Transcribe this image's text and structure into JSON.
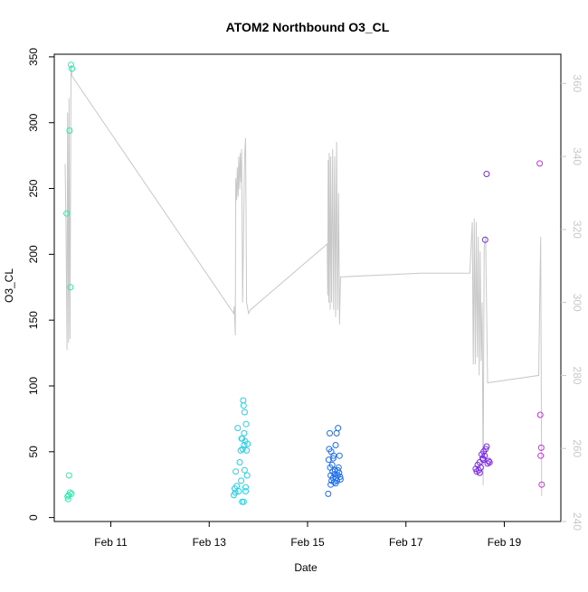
{
  "chart_data": {
    "type": "scatter",
    "title": "ATOM2 Northbound O3_CL",
    "xlabel": "Date",
    "ylabel": "O3_CL",
    "y2label": "",
    "x_unit": "days in February",
    "xlim": [
      9.85,
      20.15
    ],
    "ylim": [
      -3,
      352
    ],
    "y2lim": [
      240,
      368
    ],
    "x_ticks": [
      11,
      13,
      15,
      17,
      19
    ],
    "x_tick_labels": [
      "Feb 11",
      "Feb 13",
      "Feb 15",
      "Feb 17",
      "Feb 19"
    ],
    "y_ticks": [
      0,
      50,
      100,
      150,
      200,
      250,
      300,
      350
    ],
    "y_tick_labels": [
      "0",
      "50",
      "100",
      "150",
      "200",
      "250",
      "300",
      "350"
    ],
    "y2_ticks": [
      240,
      260,
      280,
      300,
      320,
      340,
      360
    ],
    "y2_tick_labels": [
      "240",
      "260",
      "280",
      "300",
      "320",
      "340",
      "360"
    ],
    "grid": false,
    "legend": "none",
    "colors": {
      "line": "#c8c8c8",
      "axis": "#000000",
      "axis2": "#c8c8c8"
    },
    "point_colors": {
      "c1": "#2ee8b0",
      "c2": "#26d0e6",
      "c3": "#1c6ef0",
      "c4": "#2a2ae8",
      "c5": "#7a28e6",
      "c6": "#cc2ee8"
    },
    "series": [
      {
        "role": "points",
        "axis": "left",
        "marker": "open-circle",
        "points": [
          [
            10.1,
            231,
            "c1"
          ],
          [
            10.13,
            14,
            "c1"
          ],
          [
            10.15,
            32,
            "c1"
          ],
          [
            10.16,
            294,
            "c1"
          ],
          [
            10.17,
            19,
            "c1"
          ],
          [
            10.18,
            175,
            "c1"
          ],
          [
            10.19,
            344,
            "c1"
          ],
          [
            10.2,
            18,
            "c1"
          ],
          [
            10.21,
            341,
            "c1"
          ],
          [
            10.12,
            16,
            "c1"
          ],
          [
            10.14,
            17,
            "c1"
          ],
          [
            13.5,
            17,
            "c2"
          ],
          [
            13.52,
            22,
            "c2"
          ],
          [
            13.54,
            35,
            "c2"
          ],
          [
            13.56,
            24,
            "c2"
          ],
          [
            13.58,
            68,
            "c2"
          ],
          [
            13.6,
            20,
            "c2"
          ],
          [
            13.62,
            42,
            "c2"
          ],
          [
            13.64,
            51,
            "c2"
          ],
          [
            13.65,
            28,
            "c2"
          ],
          [
            13.66,
            60,
            "c2"
          ],
          [
            13.67,
            12,
            "c2"
          ],
          [
            13.68,
            52,
            "c2"
          ],
          [
            13.69,
            89,
            "c2"
          ],
          [
            13.7,
            85,
            "c2"
          ],
          [
            13.71,
            64,
            "c2"
          ],
          [
            13.72,
            80,
            "c2"
          ],
          [
            13.73,
            58,
            "c2"
          ],
          [
            13.74,
            20,
            "c2"
          ],
          [
            13.75,
            71,
            "c2"
          ],
          [
            13.76,
            51,
            "c2"
          ],
          [
            13.77,
            32,
            "c2"
          ],
          [
            13.78,
            56,
            "c2"
          ],
          [
            13.7,
            12,
            "c2"
          ],
          [
            13.72,
            36,
            "c2"
          ],
          [
            13.74,
            23,
            "c2"
          ],
          [
            13.67,
            60,
            "c2"
          ],
          [
            13.71,
            55,
            "c2"
          ],
          [
            13.53,
            19,
            "c2"
          ],
          [
            15.42,
            18,
            "c3"
          ],
          [
            15.43,
            44,
            "c3"
          ],
          [
            15.44,
            52,
            "c3"
          ],
          [
            15.45,
            64,
            "c3"
          ],
          [
            15.46,
            38,
            "c3"
          ],
          [
            15.47,
            32,
            "c3"
          ],
          [
            15.48,
            50,
            "c3"
          ],
          [
            15.49,
            28,
            "c3"
          ],
          [
            15.5,
            40,
            "c3"
          ],
          [
            15.51,
            35,
            "c3"
          ],
          [
            15.52,
            30,
            "c3"
          ],
          [
            15.53,
            47,
            "c3"
          ],
          [
            15.54,
            27,
            "c3"
          ],
          [
            15.55,
            33,
            "c3"
          ],
          [
            15.56,
            36,
            "c3"
          ],
          [
            15.57,
            55,
            "c3"
          ],
          [
            15.58,
            30,
            "c3"
          ],
          [
            15.59,
            64,
            "c3"
          ],
          [
            15.6,
            28,
            "c3"
          ],
          [
            15.61,
            32,
            "c3"
          ],
          [
            15.62,
            68,
            "c3"
          ],
          [
            15.63,
            38,
            "c3"
          ],
          [
            15.64,
            34,
            "c3"
          ],
          [
            15.65,
            47,
            "c3"
          ],
          [
            15.66,
            31,
            "c3"
          ],
          [
            15.67,
            29,
            "c3"
          ],
          [
            15.47,
            25,
            "c3"
          ],
          [
            15.52,
            45,
            "c3"
          ],
          [
            15.57,
            26,
            "c3"
          ],
          [
            15.61,
            36,
            "c3"
          ],
          [
            18.42,
            37,
            "c5"
          ],
          [
            18.44,
            35,
            "c5"
          ],
          [
            18.46,
            40,
            "c5"
          ],
          [
            18.48,
            36,
            "c5"
          ],
          [
            18.5,
            42,
            "c5"
          ],
          [
            18.52,
            38,
            "c5"
          ],
          [
            18.54,
            48,
            "c5"
          ],
          [
            18.56,
            45,
            "c5"
          ],
          [
            18.58,
            50,
            "c5"
          ],
          [
            18.6,
            47,
            "c5"
          ],
          [
            18.62,
            52,
            "c5"
          ],
          [
            18.64,
            54,
            "c5"
          ],
          [
            18.66,
            41,
            "c5"
          ],
          [
            18.68,
            43,
            "c5"
          ],
          [
            18.7,
            42,
            "c5"
          ],
          [
            18.5,
            34,
            "c5"
          ],
          [
            18.57,
            44,
            "c5"
          ],
          [
            18.61,
            211,
            "c5"
          ],
          [
            18.64,
            261,
            "c5"
          ],
          [
            19.72,
            269,
            "c6"
          ],
          [
            19.73,
            78,
            "c6"
          ],
          [
            19.74,
            47,
            "c6"
          ],
          [
            19.75,
            53,
            "c6"
          ],
          [
            19.76,
            25,
            "c6"
          ]
        ]
      },
      {
        "role": "line",
        "axis": "right",
        "points": [
          [
            10.07,
            338
          ],
          [
            10.09,
            320
          ],
          [
            10.11,
            287
          ],
          [
            10.12,
            352
          ],
          [
            10.14,
            289
          ],
          [
            10.15,
            356
          ],
          [
            10.17,
            290
          ],
          [
            10.19,
            365
          ],
          [
            10.21,
            362
          ],
          [
            13.5,
            297
          ],
          [
            13.51,
            299
          ],
          [
            13.53,
            291
          ],
          [
            13.54,
            334
          ],
          [
            13.56,
            328
          ],
          [
            13.57,
            337
          ],
          [
            13.59,
            329
          ],
          [
            13.6,
            340
          ],
          [
            13.62,
            331
          ],
          [
            13.63,
            341
          ],
          [
            13.65,
            333
          ],
          [
            13.66,
            342
          ],
          [
            13.68,
            300
          ],
          [
            13.72,
            340
          ],
          [
            13.74,
            345
          ],
          [
            13.76,
            300
          ],
          [
            13.8,
            297
          ],
          [
            13.84,
            298
          ],
          [
            15.4,
            316
          ],
          [
            15.41,
            302
          ],
          [
            15.42,
            339
          ],
          [
            15.43,
            300
          ],
          [
            15.44,
            341
          ],
          [
            15.46,
            298
          ],
          [
            15.47,
            340
          ],
          [
            15.49,
            300
          ],
          [
            15.51,
            342
          ],
          [
            15.53,
            298
          ],
          [
            15.55,
            340
          ],
          [
            15.57,
            296
          ],
          [
            15.59,
            344
          ],
          [
            15.61,
            298
          ],
          [
            15.63,
            330
          ],
          [
            15.65,
            294
          ],
          [
            15.67,
            307
          ],
          [
            17.3,
            308
          ],
          [
            18.3,
            308
          ],
          [
            18.35,
            322
          ],
          [
            18.37,
            283
          ],
          [
            18.39,
            323
          ],
          [
            18.41,
            283
          ],
          [
            18.43,
            322
          ],
          [
            18.45,
            285
          ],
          [
            18.47,
            318
          ],
          [
            18.49,
            280
          ],
          [
            18.51,
            314
          ],
          [
            18.53,
            284
          ],
          [
            18.55,
            300
          ],
          [
            18.57,
            250
          ],
          [
            18.59,
            315
          ],
          [
            18.62,
            318
          ],
          [
            18.66,
            278
          ],
          [
            19.7,
            280
          ],
          [
            19.72,
            300
          ],
          [
            19.74,
            318
          ],
          [
            19.76,
            247
          ]
        ]
      }
    ]
  }
}
